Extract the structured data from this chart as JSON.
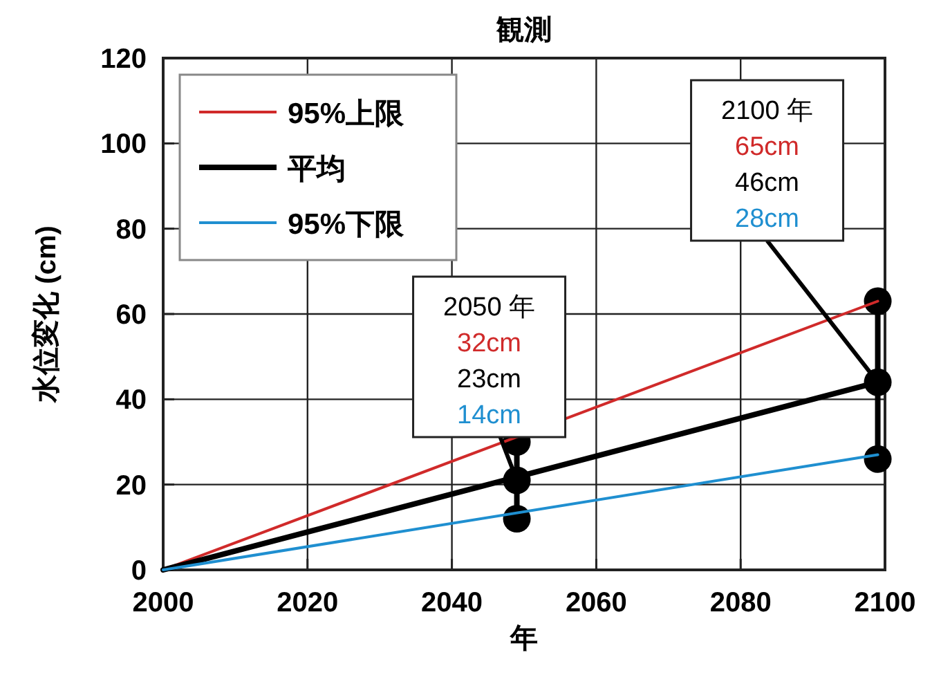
{
  "chart_data": {
    "type": "line",
    "title": "観測",
    "xlabel": "年",
    "ylabel": "水位変化 (cm)",
    "xlim": [
      2000,
      2100
    ],
    "xticks": [
      2000,
      2020,
      2040,
      2060,
      2080,
      2100
    ],
    "ylim": [
      0,
      120
    ],
    "yticks": [
      0,
      20,
      40,
      60,
      80,
      100,
      120
    ],
    "grid": true,
    "legend": "top left",
    "line_style": "solid",
    "series": [
      {
        "name": "95%上限",
        "color": "#d02a2a",
        "x": [
          2000,
          2099
        ],
        "values": [
          0,
          63
        ]
      },
      {
        "name": "平均",
        "color": "#000000",
        "x": [
          2000,
          2099
        ],
        "values": [
          0,
          44
        ]
      },
      {
        "name": "95%下限",
        "color": "#1f8fd0",
        "x": [
          2000,
          2099
        ],
        "values": [
          0,
          27
        ]
      },
      {
        "color": "#000000",
        "x": [
          2049,
          2049,
          2049
        ],
        "values": [
          30,
          21,
          12
        ],
        "marker": "circle"
      },
      {
        "color": "#000000",
        "x": [
          2099,
          2099,
          2099
        ],
        "values": [
          63,
          44,
          26
        ],
        "marker": "circle"
      }
    ],
    "annotations": [
      {
        "text": "2050 年\n32cm\n23cm\n14cm",
        "x": 2049,
        "y": 21
      },
      {
        "text": "2100 年\n65cm\n46cm\n28cm",
        "x": 2099,
        "y": 44
      }
    ]
  }
}
